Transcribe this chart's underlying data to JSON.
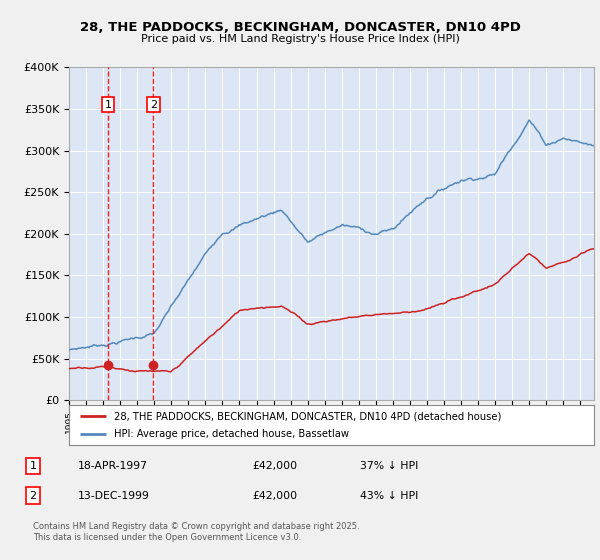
{
  "title_line1": "28, THE PADDOCKS, BECKINGHAM, DONCASTER, DN10 4PD",
  "title_line2": "Price paid vs. HM Land Registry's House Price Index (HPI)",
  "ylim": [
    0,
    400000
  ],
  "xlim_start": 1995.0,
  "xlim_end": 2025.8,
  "fig_bg_color": "#f0f0f0",
  "plot_bg_color": "#dce6f5",
  "line_red": "#cc2222",
  "line_blue": "#5588bb",
  "legend_label_red": "28, THE PADDOCKS, BECKINGHAM, DONCASTER, DN10 4PD (detached house)",
  "legend_label_blue": "HPI: Average price, detached house, Bassetlaw",
  "purchase1_date": 1997.29,
  "purchase1_price": 42000,
  "purchase1_label": "1",
  "purchase2_date": 1999.95,
  "purchase2_price": 42000,
  "purchase2_label": "2",
  "footnote_line1": "Contains HM Land Registry data © Crown copyright and database right 2025.",
  "footnote_line2": "This data is licensed under the Open Government Licence v3.0.",
  "table_rows": [
    [
      "1",
      "18-APR-1997",
      "£42,000",
      "37% ↓ HPI"
    ],
    [
      "2",
      "13-DEC-1999",
      "£42,000",
      "43% ↓ HPI"
    ]
  ]
}
